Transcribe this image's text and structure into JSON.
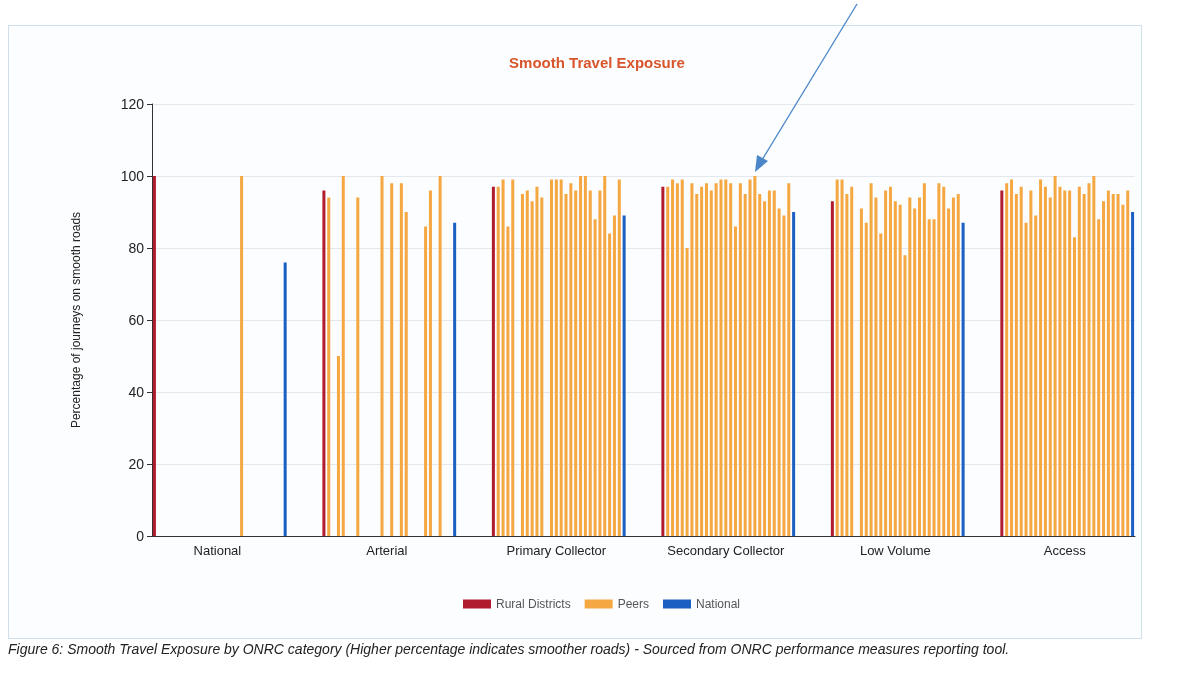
{
  "chart_data": {
    "type": "bar",
    "stacked": true,
    "title": "Smooth Travel Exposure",
    "ylabel": "Percentage of journeys on smooth roads",
    "categories": [
      null,
      null,
      null,
      null,
      null,
      null,
      null,
      null,
      null,
      null,
      null,
      null,
      null,
      "National",
      null,
      null,
      null,
      null,
      null,
      null,
      null,
      null,
      null,
      null,
      null,
      null,
      null,
      null,
      null,
      null,
      null,
      null,
      null,
      null,
      null,
      null,
      null,
      null,
      null,
      null,
      null,
      null,
      null,
      null,
      null,
      null,
      null,
      null,
      "Arterial",
      null,
      null,
      null,
      null,
      null,
      null,
      null,
      null,
      null,
      null,
      null,
      null,
      null,
      null,
      null,
      null,
      null,
      null,
      null,
      null,
      null,
      null,
      null,
      null,
      null,
      null,
      null,
      null,
      null,
      null,
      null,
      null,
      null,
      null,
      "Primary Collector",
      null,
      null,
      null,
      null,
      null,
      null,
      null,
      null,
      null,
      null,
      null,
      null,
      null,
      null,
      null,
      null,
      null,
      null,
      null,
      null,
      null,
      null,
      null,
      null,
      null,
      null,
      null,
      null,
      null,
      null,
      null,
      null,
      null,
      null,
      "Secondary Collector",
      null,
      null,
      null,
      null,
      null,
      null,
      null,
      null,
      null,
      null,
      null,
      null,
      null,
      null,
      null,
      null,
      null,
      null,
      null,
      null,
      null,
      null,
      null,
      null,
      null,
      null,
      null,
      null,
      null,
      null,
      null,
      null,
      null,
      null,
      "Low Volume",
      null,
      null,
      null,
      null,
      null,
      null,
      null,
      null,
      null,
      null,
      null,
      null,
      null,
      null,
      null,
      null,
      null,
      null,
      null,
      null,
      null,
      null,
      null,
      null,
      null,
      null,
      null,
      null,
      null,
      null,
      null,
      null,
      null,
      null,
      "Access",
      null,
      null,
      null,
      null,
      null,
      null,
      null,
      null,
      null,
      null,
      null,
      null,
      null,
      null
    ],
    "series": [
      {
        "name": "Rural Districts",
        "color": "#b01c2e",
        "values": [
          100,
          null,
          null,
          null,
          null,
          null,
          null,
          null,
          null,
          null,
          null,
          null,
          null,
          null,
          null,
          null,
          null,
          null,
          null,
          null,
          null,
          null,
          null,
          null,
          null,
          null,
          null,
          null,
          null,
          null,
          null,
          null,
          null,
          null,
          null,
          96,
          null,
          null,
          null,
          null,
          null,
          null,
          null,
          null,
          null,
          null,
          null,
          null,
          null,
          null,
          null,
          null,
          null,
          null,
          null,
          null,
          null,
          null,
          null,
          null,
          null,
          null,
          null,
          null,
          null,
          null,
          null,
          null,
          null,
          null,
          97,
          null,
          null,
          null,
          null,
          null,
          null,
          null,
          null,
          null,
          null,
          null,
          null,
          null,
          null,
          null,
          null,
          null,
          null,
          null,
          null,
          null,
          null,
          null,
          null,
          null,
          null,
          null,
          null,
          null,
          null,
          null,
          null,
          null,
          null,
          97,
          null,
          null,
          null,
          null,
          null,
          null,
          null,
          null,
          null,
          null,
          null,
          null,
          null,
          null,
          null,
          null,
          null,
          null,
          null,
          null,
          null,
          null,
          null,
          null,
          null,
          null,
          null,
          null,
          null,
          null,
          null,
          null,
          null,
          null,
          93,
          null,
          null,
          null,
          null,
          null,
          null,
          null,
          null,
          null,
          null,
          null,
          null,
          null,
          null,
          null,
          null,
          null,
          null,
          null,
          null,
          null,
          null,
          null,
          null,
          null,
          null,
          null,
          null,
          null,
          null,
          null,
          null,
          null,
          null,
          96,
          null,
          null,
          null,
          null,
          null,
          null,
          null,
          null,
          null,
          null,
          null,
          null,
          null,
          null,
          null,
          null,
          null,
          null,
          null,
          null,
          null,
          null,
          null,
          null,
          null,
          null,
          null
        ]
      },
      {
        "name": "Peers",
        "color": "#f5a742",
        "values": [
          null,
          null,
          null,
          null,
          null,
          null,
          null,
          null,
          null,
          null,
          null,
          null,
          null,
          null,
          null,
          null,
          null,
          null,
          100,
          null,
          null,
          null,
          null,
          null,
          null,
          null,
          null,
          null,
          null,
          null,
          null,
          null,
          null,
          null,
          null,
          null,
          94,
          null,
          50,
          100,
          null,
          null,
          94,
          null,
          null,
          null,
          null,
          100,
          null,
          98,
          null,
          98,
          90,
          null,
          null,
          null,
          86,
          96,
          null,
          100,
          null,
          null,
          null,
          null,
          null,
          null,
          null,
          null,
          null,
          null,
          null,
          97,
          99,
          86,
          99,
          null,
          95,
          96,
          93,
          97,
          94,
          null,
          99,
          99,
          99,
          95,
          98,
          96,
          100,
          100,
          96,
          88,
          96,
          100,
          84,
          89,
          99,
          null,
          null,
          null,
          null,
          null,
          null,
          null,
          null,
          null,
          97,
          99,
          98,
          99,
          80,
          98,
          95,
          97,
          98,
          96,
          98,
          99,
          99,
          98,
          86,
          98,
          95,
          99,
          100,
          95,
          93,
          96,
          96,
          91,
          89,
          98,
          null,
          null,
          null,
          null,
          null,
          null,
          null,
          null,
          null,
          99,
          99,
          95,
          97,
          null,
          91,
          87,
          98,
          94,
          84,
          96,
          97,
          93,
          92,
          78,
          94,
          91,
          94,
          98,
          88,
          88,
          98,
          97,
          91,
          94,
          95,
          null,
          null,
          null,
          null,
          null,
          null,
          null,
          null,
          null,
          98,
          99,
          95,
          97,
          87,
          96,
          89,
          99,
          97,
          94,
          100,
          97,
          96,
          96,
          83,
          97,
          95,
          98,
          100,
          88,
          93,
          96,
          95,
          95,
          92,
          96,
          null
        ]
      },
      {
        "name": "National",
        "color": "#1a5fc1",
        "values": [
          null,
          null,
          null,
          null,
          null,
          null,
          null,
          null,
          null,
          null,
          null,
          null,
          null,
          null,
          null,
          null,
          null,
          null,
          null,
          null,
          null,
          null,
          null,
          null,
          null,
          null,
          null,
          76,
          null,
          null,
          null,
          null,
          null,
          null,
          null,
          null,
          null,
          null,
          null,
          null,
          null,
          null,
          null,
          null,
          null,
          null,
          null,
          null,
          null,
          null,
          null,
          null,
          null,
          null,
          null,
          null,
          null,
          null,
          null,
          null,
          null,
          null,
          87,
          null,
          null,
          null,
          null,
          null,
          null,
          null,
          null,
          null,
          null,
          null,
          null,
          null,
          null,
          null,
          null,
          null,
          null,
          null,
          null,
          null,
          null,
          null,
          null,
          null,
          null,
          null,
          null,
          null,
          null,
          null,
          null,
          null,
          null,
          89,
          null,
          null,
          null,
          null,
          null,
          null,
          null,
          null,
          null,
          null,
          null,
          null,
          null,
          null,
          null,
          null,
          null,
          null,
          null,
          null,
          null,
          null,
          null,
          null,
          null,
          null,
          null,
          null,
          null,
          null,
          null,
          null,
          null,
          null,
          90,
          null,
          null,
          null,
          null,
          null,
          null,
          null,
          null,
          null,
          null,
          null,
          null,
          null,
          null,
          null,
          null,
          null,
          null,
          null,
          null,
          null,
          null,
          null,
          null,
          null,
          null,
          null,
          null,
          null,
          null,
          null,
          null,
          null,
          null,
          87,
          null,
          null,
          null,
          null,
          null,
          null,
          null,
          null,
          null,
          null,
          null,
          null,
          null,
          null,
          null,
          null,
          null,
          null,
          null,
          null,
          null,
          null,
          null,
          null,
          null,
          null,
          null,
          null,
          null,
          null,
          null,
          null,
          null,
          null,
          90
        ]
      }
    ],
    "ylim": [
      0,
      120
    ],
    "yticks": [
      0,
      20,
      40,
      60,
      80,
      100,
      120
    ],
    "grid": "y",
    "legend": "bottom",
    "annotations": [
      "Figure 6:  Smooth Travel Exposure by ONRC category (Higher percentage indicates smoother roads) - Sourced from ONRC performance measures reporting tool."
    ]
  }
}
